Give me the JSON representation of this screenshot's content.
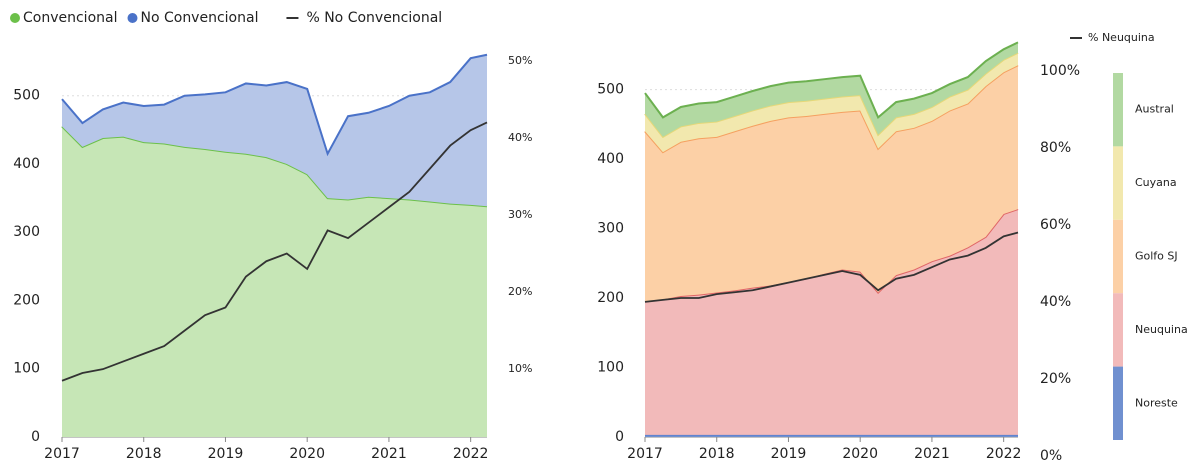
{
  "chart_data": [
    {
      "type": "area",
      "legend": "top",
      "x": [
        2017.0,
        2017.25,
        2017.5,
        2017.75,
        2018.0,
        2018.25,
        2018.5,
        2018.75,
        2019.0,
        2019.25,
        2019.5,
        2019.75,
        2020.0,
        2020.25,
        2020.5,
        2020.75,
        2021.0,
        2021.25,
        2021.5,
        2021.75,
        2022.0,
        2022.2
      ],
      "xlim": [
        2017,
        2022.2
      ],
      "xticks": [
        2017,
        2018,
        2019,
        2020,
        2021,
        2022
      ],
      "ylim": [
        0,
        567
      ],
      "yticks": [
        0,
        100,
        200,
        300,
        400,
        500
      ],
      "y2lim": [
        1.2,
        51.4
      ],
      "y2ticks": [
        {
          "value": 10,
          "label": "10%"
        },
        {
          "value": 20,
          "label": "20%"
        },
        {
          "value": 30,
          "label": "30%"
        },
        {
          "value": 40,
          "label": "40%"
        },
        {
          "value": 50,
          "label": "50%"
        }
      ],
      "grid": true,
      "series": [
        {
          "name": "Convencional",
          "type": "area",
          "color": "#6cc04a",
          "fill": "#c6e6b6",
          "values": [
            455,
            425,
            438,
            440,
            432,
            430,
            425,
            422,
            418,
            415,
            410,
            400,
            385,
            350,
            348,
            352,
            350,
            348,
            345,
            342,
            340,
            338
          ]
        },
        {
          "name": "No Convencional",
          "type": "area",
          "color": "#4a72c8",
          "fill": "#b6c6e8",
          "values": [
            40,
            35,
            42,
            50,
            53,
            57,
            75,
            80,
            87,
            103,
            105,
            120,
            125,
            65,
            122,
            123,
            135,
            152,
            160,
            178,
            215,
            222
          ]
        },
        {
          "name": "% No Convencional",
          "type": "line",
          "axis": "y2",
          "color": "#333333",
          "values": [
            8.5,
            9.5,
            10,
            11,
            12,
            13,
            15,
            17,
            18,
            22,
            24,
            25,
            23,
            28,
            27,
            29,
            31,
            33,
            36,
            39,
            41,
            42
          ]
        }
      ]
    },
    {
      "type": "area",
      "legend": "right-bar",
      "x": [
        2017.0,
        2017.25,
        2017.5,
        2017.75,
        2018.0,
        2018.25,
        2018.5,
        2018.75,
        2019.0,
        2019.25,
        2019.5,
        2019.75,
        2020.0,
        2020.25,
        2020.5,
        2020.75,
        2021.0,
        2021.25,
        2021.5,
        2021.75,
        2022.0,
        2022.2
      ],
      "xlim": [
        2017,
        2022.2
      ],
      "xticks": [
        2017,
        2018,
        2019,
        2020,
        2021,
        2022
      ],
      "ylim": [
        0,
        557
      ],
      "yticks": [
        0,
        100,
        200,
        300,
        400,
        500
      ],
      "y2lim": [
        4.9,
        105.4
      ],
      "y2ticks": [
        {
          "value": 0,
          "label": "0%"
        },
        {
          "value": 20,
          "label": "20%"
        },
        {
          "value": 40,
          "label": "40%"
        },
        {
          "value": 60,
          "label": "60%"
        },
        {
          "value": 80,
          "label": "80%"
        },
        {
          "value": 100,
          "label": "100%"
        }
      ],
      "grid": true,
      "series": [
        {
          "name": "Noreste",
          "type": "area",
          "color": "#5f82cf",
          "fill": "#7090d0",
          "values": [
            3,
            3,
            3,
            3,
            3,
            3,
            3,
            3,
            3,
            3,
            3,
            3,
            3,
            3,
            3,
            3,
            3,
            3,
            3,
            3,
            3,
            3
          ]
        },
        {
          "name": "Neuquina",
          "type": "area",
          "color": "#e06666",
          "fill": "#f2baba",
          "values": [
            192,
            195,
            200,
            202,
            205,
            208,
            212,
            215,
            220,
            225,
            232,
            238,
            235,
            205,
            230,
            238,
            250,
            258,
            270,
            285,
            318,
            325
          ]
        },
        {
          "name": "Golfo SJ",
          "type": "area",
          "color": "#f5a060",
          "fill": "#fcd0a6",
          "values": [
            245,
            212,
            222,
            225,
            224,
            229,
            233,
            237,
            237,
            234,
            230,
            227,
            232,
            207,
            207,
            204,
            202,
            209,
            207,
            217,
            204,
            207
          ]
        },
        {
          "name": "Cuyana",
          "type": "area",
          "color": "#e6d878",
          "fill": "#f2e8ae",
          "values": [
            25,
            22,
            22,
            22,
            22,
            22,
            22,
            22,
            22,
            22,
            22,
            22,
            22,
            20,
            20,
            20,
            20,
            20,
            20,
            18,
            18,
            18
          ]
        },
        {
          "name": "Austral",
          "type": "area",
          "color": "#6cb050",
          "fill": "#b2d9a2",
          "values": [
            30,
            28,
            28,
            28,
            28,
            28,
            28,
            28,
            28,
            28,
            28,
            28,
            28,
            25,
            22,
            22,
            20,
            18,
            18,
            18,
            15,
            15
          ]
        },
        {
          "name": "% Neuquina",
          "type": "line",
          "axis": "y2",
          "color": "#333333",
          "values": [
            40,
            40.5,
            41,
            41,
            42,
            42.5,
            43,
            44,
            45,
            46,
            47,
            48,
            47,
            43,
            46,
            47,
            49,
            51,
            52,
            54,
            57,
            58
          ]
        }
      ]
    }
  ]
}
